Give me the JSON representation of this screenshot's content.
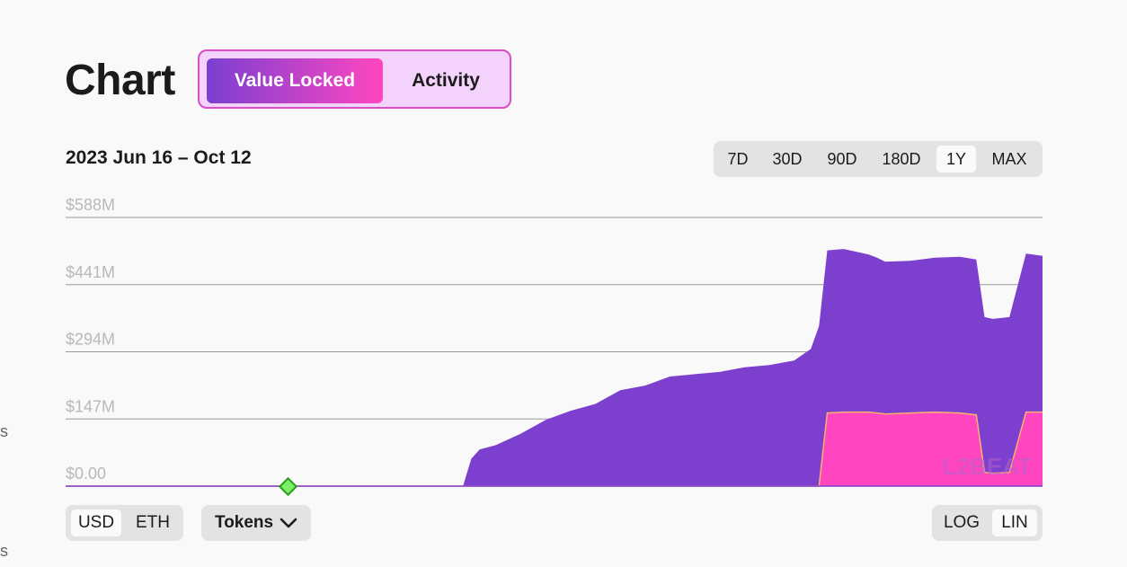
{
  "header": {
    "title": "Chart",
    "tabs": [
      {
        "label": "Value Locked",
        "active": true
      },
      {
        "label": "Activity",
        "active": false
      }
    ]
  },
  "date_range": "2023 Jun 16 – Oct 12",
  "range_buttons": [
    {
      "label": "7D",
      "selected": false
    },
    {
      "label": "30D",
      "selected": false
    },
    {
      "label": "90D",
      "selected": false
    },
    {
      "label": "180D",
      "selected": false
    },
    {
      "label": "1Y",
      "selected": true
    },
    {
      "label": "MAX",
      "selected": false
    }
  ],
  "currency": {
    "options": [
      "USD",
      "ETH"
    ],
    "selected": "USD"
  },
  "tokens_label": "Tokens",
  "scale": {
    "options": [
      "LOG",
      "LIN"
    ],
    "selected": "LIN"
  },
  "watermark": "L2BEAT",
  "edge_fragments": [
    "s",
    "s"
  ],
  "colors": {
    "purple_series": "#7d3fcd",
    "pink_series": "#ff46c0",
    "accent_orange": "#f7b36b"
  },
  "chart_data": {
    "type": "area",
    "stacked": true,
    "x_start": "2023-06-16",
    "x_end": "2023-10-12",
    "y_ticks": [
      "$0.00",
      "$147M",
      "$294M",
      "$441M",
      "$588M"
    ],
    "ylim": [
      0,
      588
    ],
    "y_unit": "$M",
    "grid": true,
    "log_scale": false,
    "dates": [
      "2023-06-16",
      "2023-06-21",
      "2023-06-26",
      "2023-07-01",
      "2023-07-06",
      "2023-07-11",
      "2023-07-16",
      "2023-07-21",
      "2023-07-26",
      "2023-07-31",
      "2023-08-03",
      "2023-08-04",
      "2023-08-05",
      "2023-08-07",
      "2023-08-10",
      "2023-08-13",
      "2023-08-16",
      "2023-08-19",
      "2023-08-22",
      "2023-08-25",
      "2023-08-28",
      "2023-08-31",
      "2023-09-03",
      "2023-09-06",
      "2023-09-09",
      "2023-09-12",
      "2023-09-14",
      "2023-09-15",
      "2023-09-16",
      "2023-09-18",
      "2023-09-21",
      "2023-09-22",
      "2023-09-23",
      "2023-09-26",
      "2023-09-29",
      "2023-10-02",
      "2023-10-04",
      "2023-10-05",
      "2023-10-06",
      "2023-10-08",
      "2023-10-10",
      "2023-10-12"
    ],
    "series": [
      {
        "values": [
          0,
          0,
          0,
          0,
          0,
          0,
          0,
          0,
          0,
          0,
          0,
          0,
          0,
          0,
          0,
          0,
          0,
          0,
          0,
          0,
          0,
          0,
          0,
          0,
          0,
          0,
          0,
          0,
          160,
          162,
          162,
          160,
          158,
          160,
          162,
          160,
          156,
          30,
          28,
          30,
          162,
          162
        ]
      },
      {
        "values": [
          0,
          0,
          0,
          0,
          1,
          0,
          0,
          0,
          1,
          0,
          0,
          60,
          80,
          90,
          115,
          145,
          165,
          180,
          210,
          220,
          240,
          245,
          250,
          260,
          265,
          275,
          300,
          350,
          356,
          357,
          345,
          340,
          333,
          333,
          338,
          342,
          340,
          340,
          338,
          340,
          347,
          342
        ]
      }
    ]
  }
}
